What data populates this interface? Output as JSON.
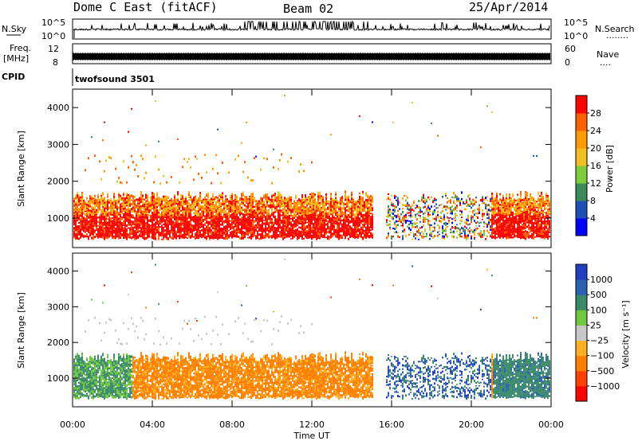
{
  "header": {
    "station": "Dome C East (fitACF)",
    "beam": "Beam 02",
    "date": "25/Apr/2014"
  },
  "nsky_panel": {
    "left_label": "N.Sky",
    "left_ticks": [
      "10^5",
      "10^0"
    ],
    "right_ticks": [
      "10^5",
      "10^0"
    ],
    "right_label": "N.Search",
    "right_dots": "........"
  },
  "freq_panel": {
    "left_label_1": "Freq.",
    "left_label_2": "[MHz]",
    "left_ticks": [
      "12",
      "8"
    ],
    "right_ticks": [
      "60",
      "0"
    ],
    "right_label": "Nave",
    "right_dots": "...."
  },
  "cpid_panel": {
    "label": "CPID",
    "value": "twofsound 3501"
  },
  "x_axis": {
    "title": "Time UT",
    "ticks": [
      "00:00",
      "04:00",
      "08:00",
      "12:00",
      "16:00",
      "20:00",
      "00:00"
    ]
  },
  "power_panel": {
    "ylabel": "Slant Range [km]",
    "yticks": [
      "1000",
      "2000",
      "3000",
      "4000"
    ],
    "colorbar_label": "Power [dB]",
    "colorbar_ticks": [
      "4",
      "8",
      "12",
      "16",
      "20",
      "24",
      "28"
    ],
    "colors": [
      "#0000ff",
      "#1f4fb4",
      "#3a8a5a",
      "#7ccf3a",
      "#f0c020",
      "#ff9a00",
      "#ff6000",
      "#ff0000"
    ]
  },
  "velocity_panel": {
    "ylabel": "Slant Range [km]",
    "yticks": [
      "1000",
      "2000",
      "3000",
      "4000"
    ],
    "colorbar_label": "Velocity [m s⁻¹]",
    "colorbar_ticks": [
      "1000",
      "500",
      "100",
      "25",
      "−25",
      "−100",
      "−500",
      "−1000"
    ],
    "colors": [
      "#2040c0",
      "#2a62b0",
      "#3a8a6a",
      "#70c840",
      "#c8c8c8",
      "#ffb020",
      "#ff8000",
      "#ff4000",
      "#ff0000"
    ]
  },
  "chart_data": {
    "type": "heatmap",
    "x_units": "hours UT",
    "xlim": [
      0,
      24
    ],
    "ylim_km": [
      200,
      4500
    ],
    "activity_intervals_hours": [
      [
        0,
        15
      ],
      [
        15.7,
        24
      ]
    ],
    "main_echo_band_km": [
      400,
      1700
    ],
    "sky_noise_log10_range": [
      0,
      5
    ],
    "nave_range": [
      0,
      60
    ],
    "freq_range_mhz": [
      8,
      12
    ]
  }
}
